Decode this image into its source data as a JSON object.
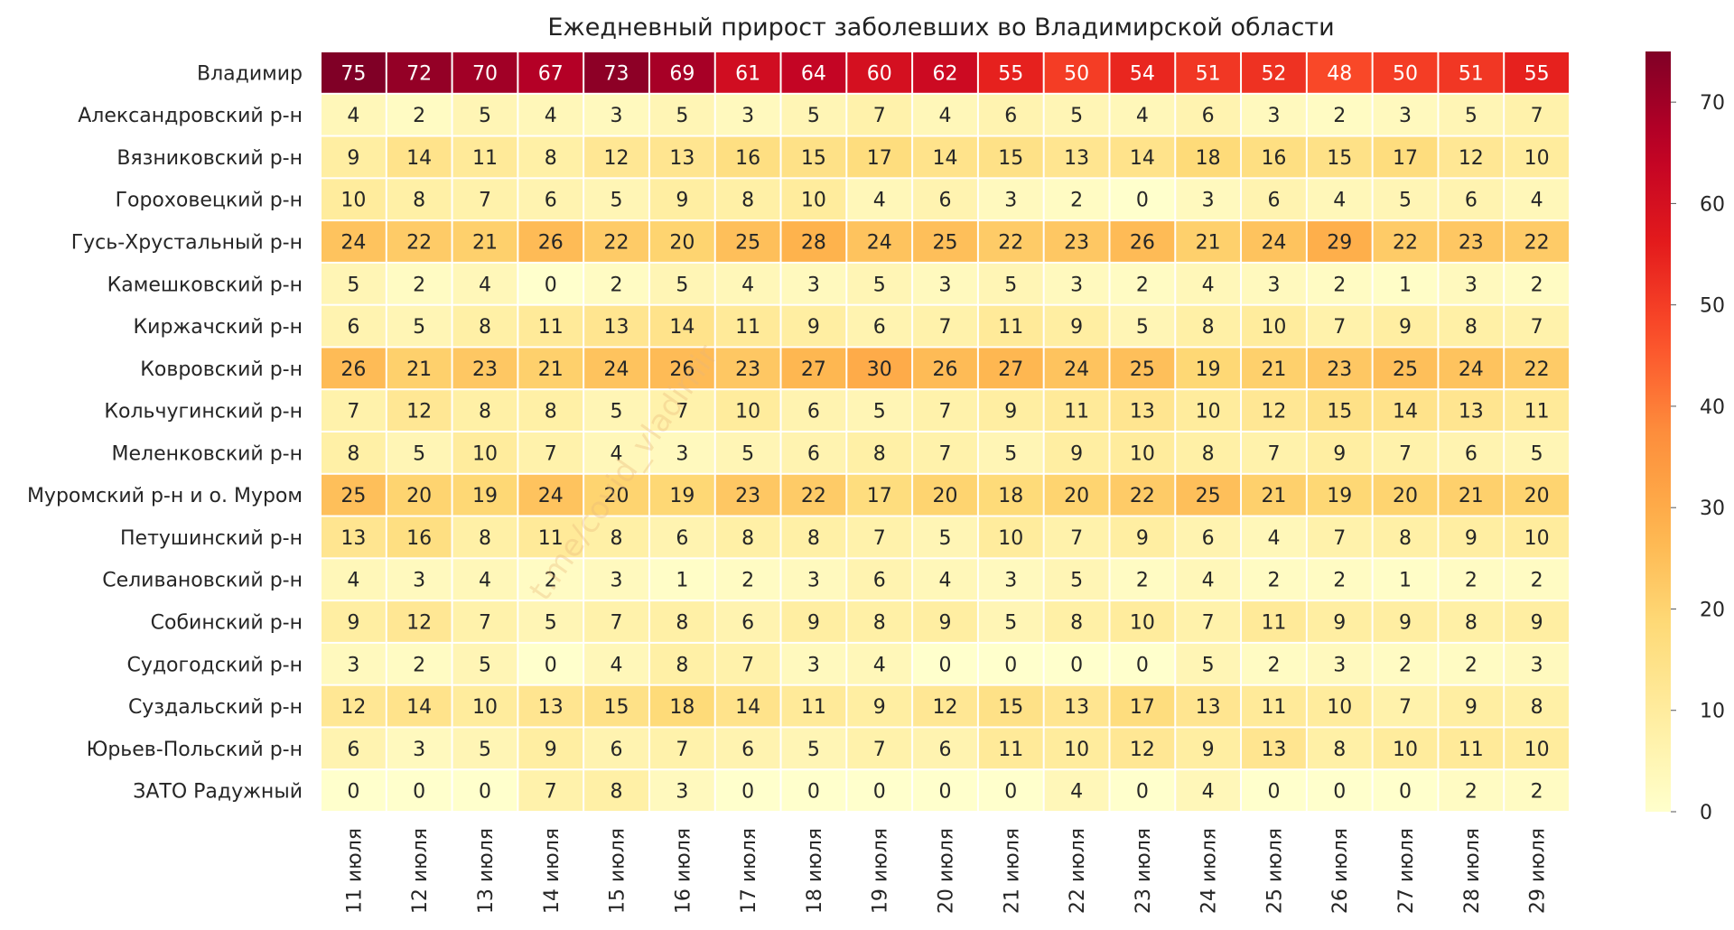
{
  "chart_data": {
    "type": "heatmap",
    "title": "Ежедневный прирост заболевших во Владимирской области",
    "xlabel": "",
    "ylabel": "",
    "watermark": "t.me/covid_vladimir",
    "columns": [
      "11 июля",
      "12 июля",
      "13 июля",
      "14 июля",
      "15 июля",
      "16 июля",
      "17 июля",
      "18 июля",
      "19 июля",
      "20 июля",
      "21 июля",
      "22 июля",
      "23 июля",
      "24 июля",
      "25 июля",
      "26 июля",
      "27 июля",
      "28 июля",
      "29 июля"
    ],
    "rows": [
      "Владимир",
      "Александровский р-н",
      "Вязниковский р-н",
      "Гороховецкий р-н",
      "Гусь-Хрустальный р-н",
      "Камешковский р-н",
      "Киржачский р-н",
      "Ковровский р-н",
      "Кольчугинский р-н",
      "Меленковский р-н",
      "Муромский р-н и о. Муром",
      "Петушинский р-н",
      "Селивановский р-н",
      "Собинский р-н",
      "Судогодский р-н",
      "Суздальский р-н",
      "Юрьев-Польский р-н",
      "ЗАТО Радужный"
    ],
    "values": [
      [
        75,
        72,
        70,
        67,
        73,
        69,
        61,
        64,
        60,
        62,
        55,
        50,
        54,
        51,
        52,
        48,
        50,
        51,
        55
      ],
      [
        4,
        2,
        5,
        4,
        3,
        5,
        3,
        5,
        7,
        4,
        6,
        5,
        4,
        6,
        3,
        2,
        3,
        5,
        7
      ],
      [
        9,
        14,
        11,
        8,
        12,
        13,
        16,
        15,
        17,
        14,
        15,
        13,
        14,
        18,
        16,
        15,
        17,
        12,
        10
      ],
      [
        10,
        8,
        7,
        6,
        5,
        9,
        8,
        10,
        4,
        6,
        3,
        2,
        0,
        3,
        6,
        4,
        5,
        6,
        4
      ],
      [
        24,
        22,
        21,
        26,
        22,
        20,
        25,
        28,
        24,
        25,
        22,
        23,
        26,
        21,
        24,
        29,
        22,
        23,
        22
      ],
      [
        5,
        2,
        4,
        0,
        2,
        5,
        4,
        3,
        5,
        3,
        5,
        3,
        2,
        4,
        3,
        2,
        1,
        3,
        2
      ],
      [
        6,
        5,
        8,
        11,
        13,
        14,
        11,
        9,
        6,
        7,
        11,
        9,
        5,
        8,
        10,
        7,
        9,
        8,
        7
      ],
      [
        26,
        21,
        23,
        21,
        24,
        26,
        23,
        27,
        30,
        26,
        27,
        24,
        25,
        19,
        21,
        23,
        25,
        24,
        22
      ],
      [
        7,
        12,
        8,
        8,
        5,
        7,
        10,
        6,
        5,
        7,
        9,
        11,
        13,
        10,
        12,
        15,
        14,
        13,
        11
      ],
      [
        8,
        5,
        10,
        7,
        4,
        3,
        5,
        6,
        8,
        7,
        5,
        9,
        10,
        8,
        7,
        9,
        7,
        6,
        5
      ],
      [
        25,
        20,
        19,
        24,
        20,
        19,
        23,
        22,
        17,
        20,
        18,
        20,
        22,
        25,
        21,
        19,
        20,
        21,
        20
      ],
      [
        13,
        16,
        8,
        11,
        8,
        6,
        8,
        8,
        7,
        5,
        10,
        7,
        9,
        6,
        4,
        7,
        8,
        9,
        10
      ],
      [
        4,
        3,
        4,
        2,
        3,
        1,
        2,
        3,
        6,
        4,
        3,
        5,
        2,
        4,
        2,
        2,
        1,
        2,
        2
      ],
      [
        9,
        12,
        7,
        5,
        7,
        8,
        6,
        9,
        8,
        9,
        5,
        8,
        10,
        7,
        11,
        9,
        9,
        8,
        9
      ],
      [
        3,
        2,
        5,
        0,
        4,
        8,
        7,
        3,
        4,
        0,
        0,
        0,
        0,
        5,
        2,
        3,
        2,
        2,
        3
      ],
      [
        12,
        14,
        10,
        13,
        15,
        18,
        14,
        11,
        9,
        12,
        15,
        13,
        17,
        13,
        11,
        10,
        7,
        9,
        8
      ],
      [
        6,
        3,
        5,
        9,
        6,
        7,
        6,
        5,
        7,
        6,
        11,
        10,
        12,
        9,
        13,
        8,
        10,
        11,
        10
      ],
      [
        0,
        0,
        0,
        7,
        8,
        3,
        0,
        0,
        0,
        0,
        0,
        4,
        0,
        4,
        0,
        0,
        0,
        2,
        2
      ]
    ],
    "vmin": 0,
    "vmax": 75,
    "colorbar_ticks": [
      0,
      10,
      20,
      30,
      40,
      50,
      60,
      70
    ],
    "colormap": "YlOrRd"
  }
}
